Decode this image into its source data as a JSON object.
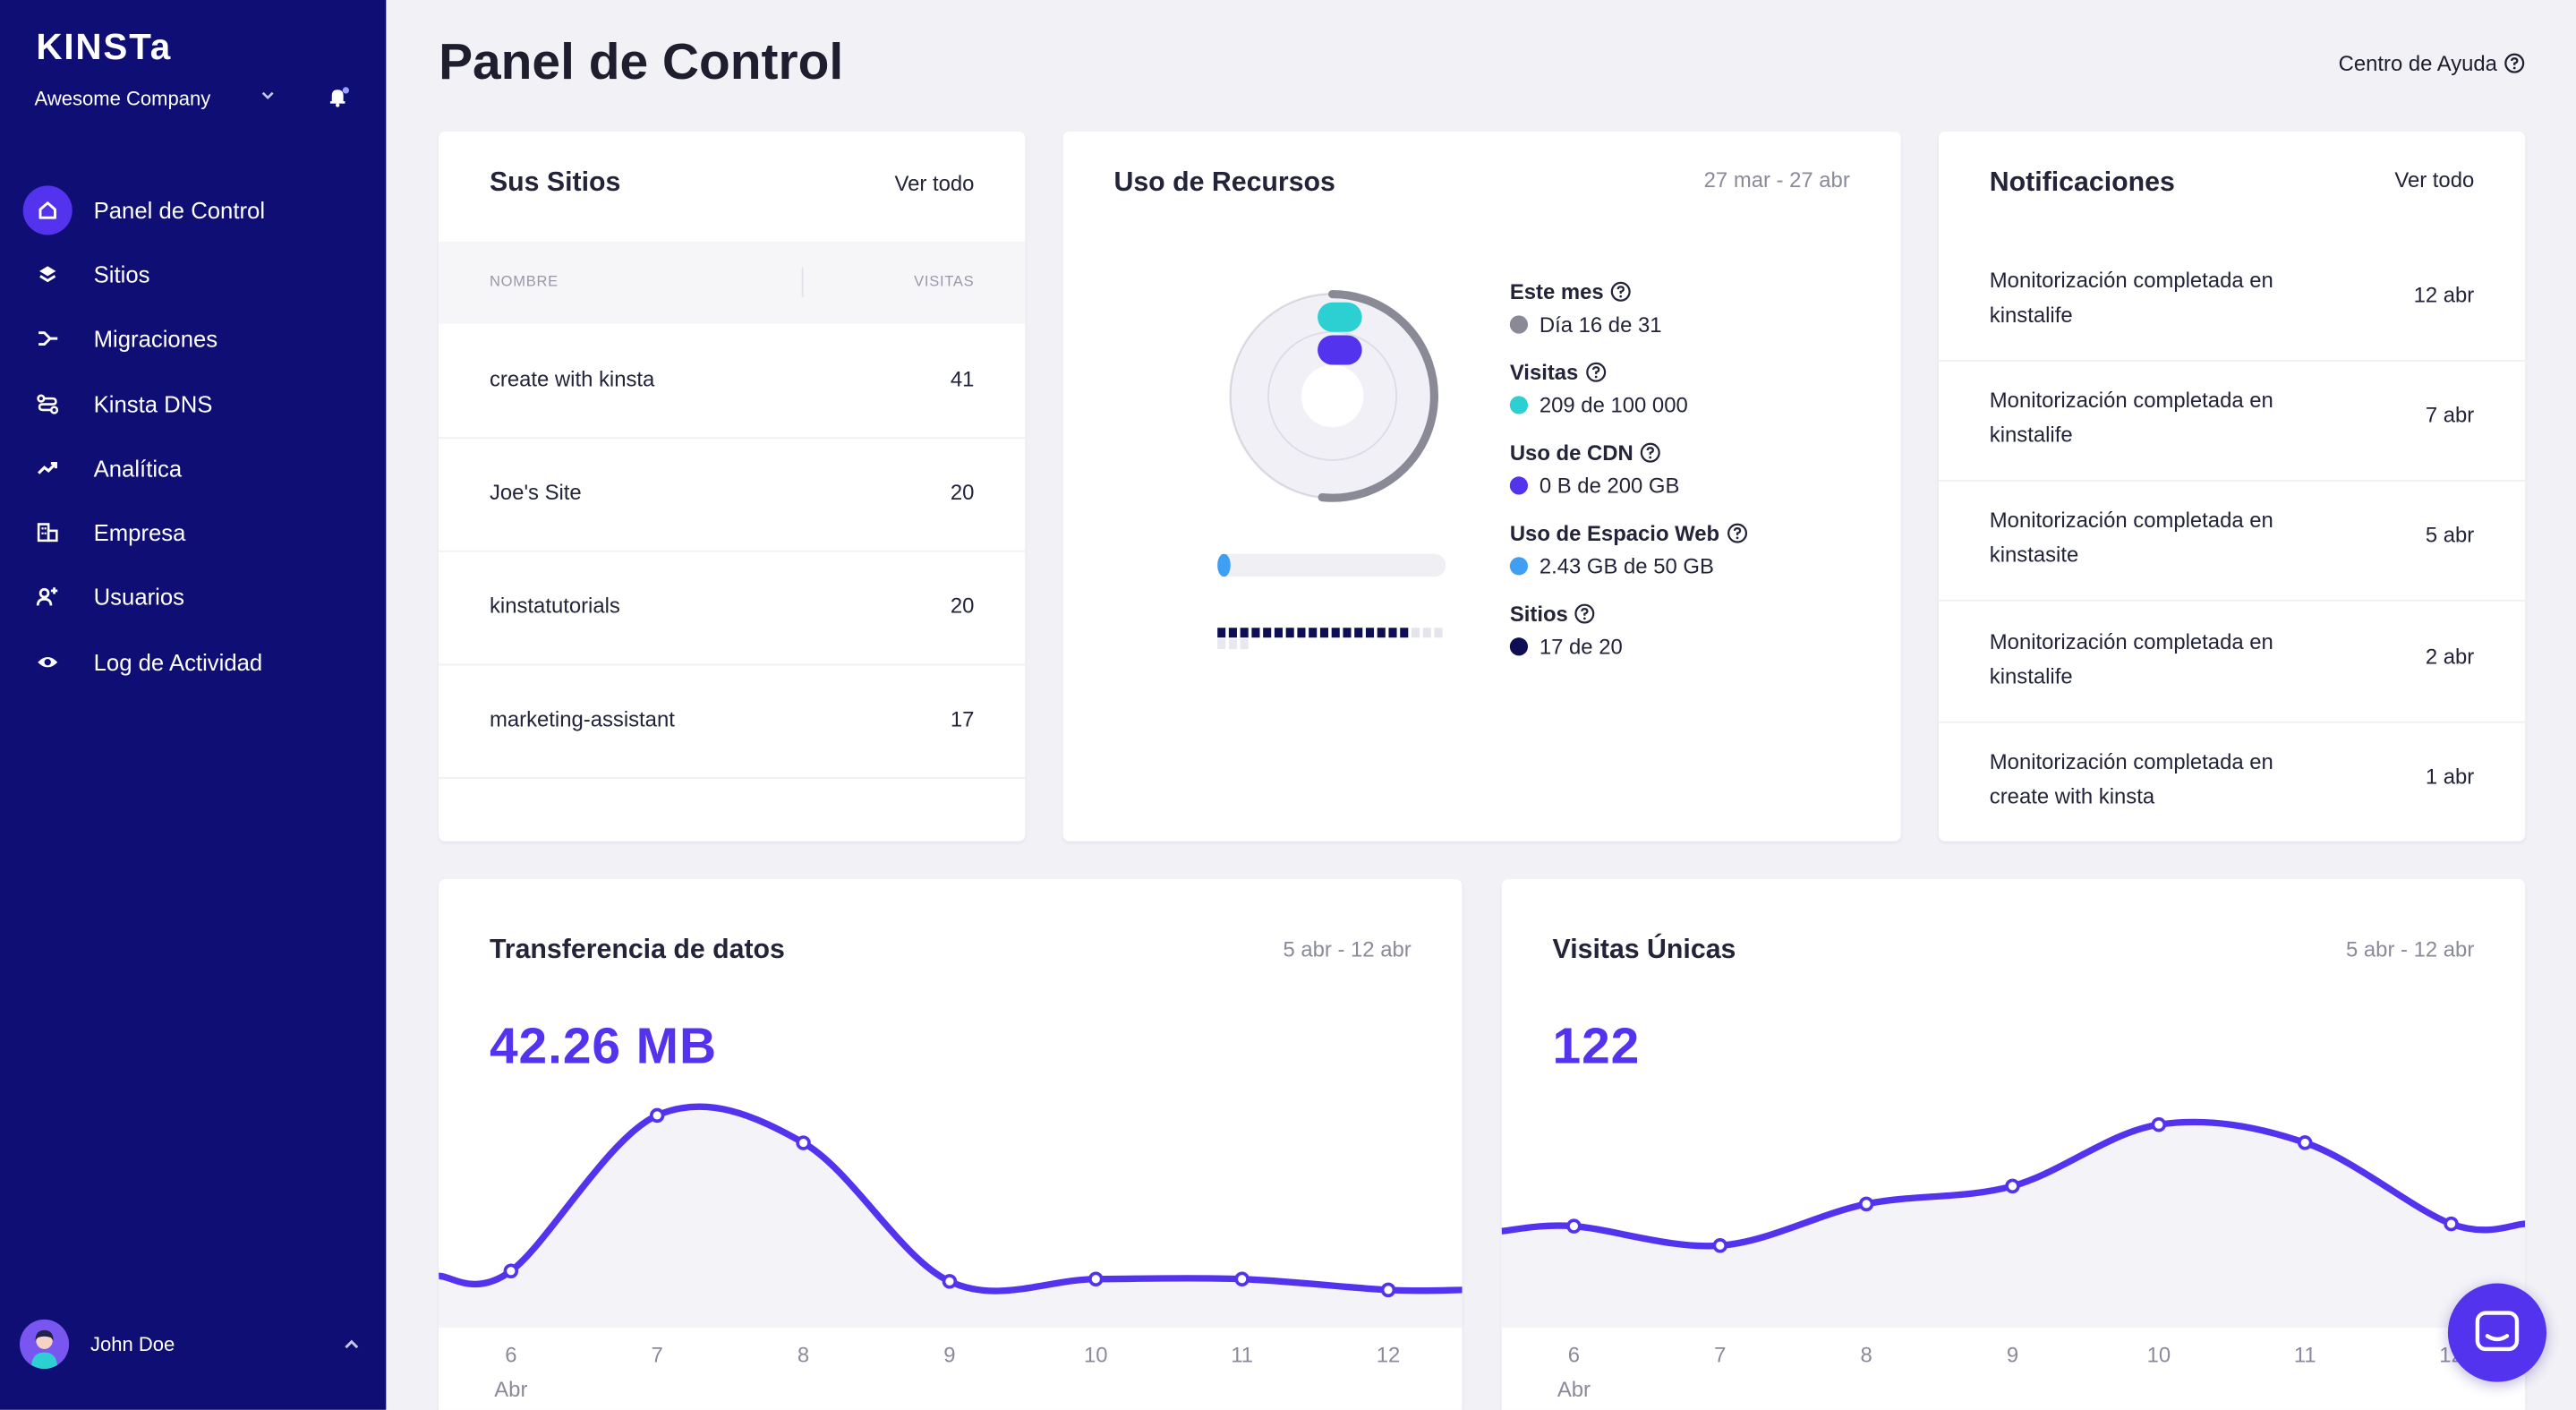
{
  "brand": {
    "logo": "KINSTa",
    "company": "Awesome Company"
  },
  "nav": [
    {
      "label": "Panel de Control",
      "icon": "home-icon",
      "active": true
    },
    {
      "label": "Sitios",
      "icon": "layers-icon"
    },
    {
      "label": "Migraciones",
      "icon": "migrate-icon"
    },
    {
      "label": "Kinsta DNS",
      "icon": "dns-icon"
    },
    {
      "label": "Analítica",
      "icon": "trend-icon"
    },
    {
      "label": "Empresa",
      "icon": "building-icon"
    },
    {
      "label": "Usuarios",
      "icon": "add-user-icon"
    },
    {
      "label": "Log de Actividad",
      "icon": "eye-icon"
    }
  ],
  "user": {
    "name": "John Doe"
  },
  "header": {
    "title": "Panel de Control",
    "help": "Centro de Ayuda"
  },
  "sites": {
    "title": "Sus Sitios",
    "link": "Ver todo",
    "col_name": "NOMBRE",
    "col_visits": "VISITAS",
    "rows": [
      {
        "name": "create with kinsta",
        "visits": "41"
      },
      {
        "name": "Joe's Site",
        "visits": "20"
      },
      {
        "name": "kinstatutorials",
        "visits": "20"
      },
      {
        "name": "marketing-assistant",
        "visits": "17"
      }
    ]
  },
  "resources": {
    "title": "Uso de Recursos",
    "date": "27 mar - 27 abr",
    "stats": [
      {
        "label": "Este mes",
        "value": "Día 16 de 31",
        "color": "#8a8a96",
        "fraction": 0.516
      },
      {
        "label": "Visitas",
        "value": "209 de 100 000",
        "color": "#2ccfd2",
        "fraction": 0.002
      },
      {
        "label": "Uso de CDN",
        "value": "0 B de 200 GB",
        "color": "#5333ed",
        "fraction": 0.0
      },
      {
        "label": "Uso de Espacio Web",
        "value": "2.43 GB de 50 GB",
        "color": "#3fa0f3",
        "fraction": 0.049
      },
      {
        "label": "Sitios",
        "value": "17 de 20",
        "color": "#0e0e55",
        "fraction": 0.85
      }
    ],
    "sites_used": 17,
    "sites_total": 20
  },
  "notifications": {
    "title": "Notificaciones",
    "link": "Ver todo",
    "items": [
      {
        "text": "Monitorización completada en kinstalife",
        "date": "12 abr"
      },
      {
        "text": "Monitorización completada en kinstalife",
        "date": "7 abr"
      },
      {
        "text": "Monitorización completada en kinstasite",
        "date": "5 abr"
      },
      {
        "text": "Monitorización completada en kinstalife",
        "date": "2 abr"
      },
      {
        "text": "Monitorización completada en create with kinsta",
        "date": "1 abr"
      }
    ]
  },
  "transfer": {
    "title": "Transferencia de datos",
    "date": "5 abr - 12 abr",
    "value": "42.26 MB",
    "month_label": "Abr"
  },
  "visits": {
    "title": "Visitas Únicas",
    "date": "5 abr - 12 abr",
    "value": "122",
    "month_label": "Abr"
  },
  "chart_data": [
    {
      "type": "area",
      "x": [
        "6",
        "7",
        "8",
        "9",
        "10",
        "11",
        "12"
      ],
      "series": [
        {
          "values": [
            3.3,
            30.6,
            25.8,
            1.5,
            1.9,
            1.9,
            0
          ]
        }
      ],
      "ylim": [
        0,
        34
      ],
      "xlabel": "",
      "ylabel": "",
      "grid": false
    },
    {
      "type": "area",
      "x": [
        "6",
        "7",
        "8",
        "9",
        "10",
        "11",
        "12"
      ],
      "series": [
        {
          "values": [
            13.8,
            9.6,
            18.6,
            22.5,
            35.8,
            31.9,
            14.3
          ]
        }
      ],
      "ylim": [
        0,
        42
      ],
      "xlabel": "",
      "ylabel": "",
      "grid": false
    }
  ],
  "colors": {
    "sidebar": "#0e0e75",
    "accent": "#5333ed",
    "cyan": "#2ccfd2"
  }
}
